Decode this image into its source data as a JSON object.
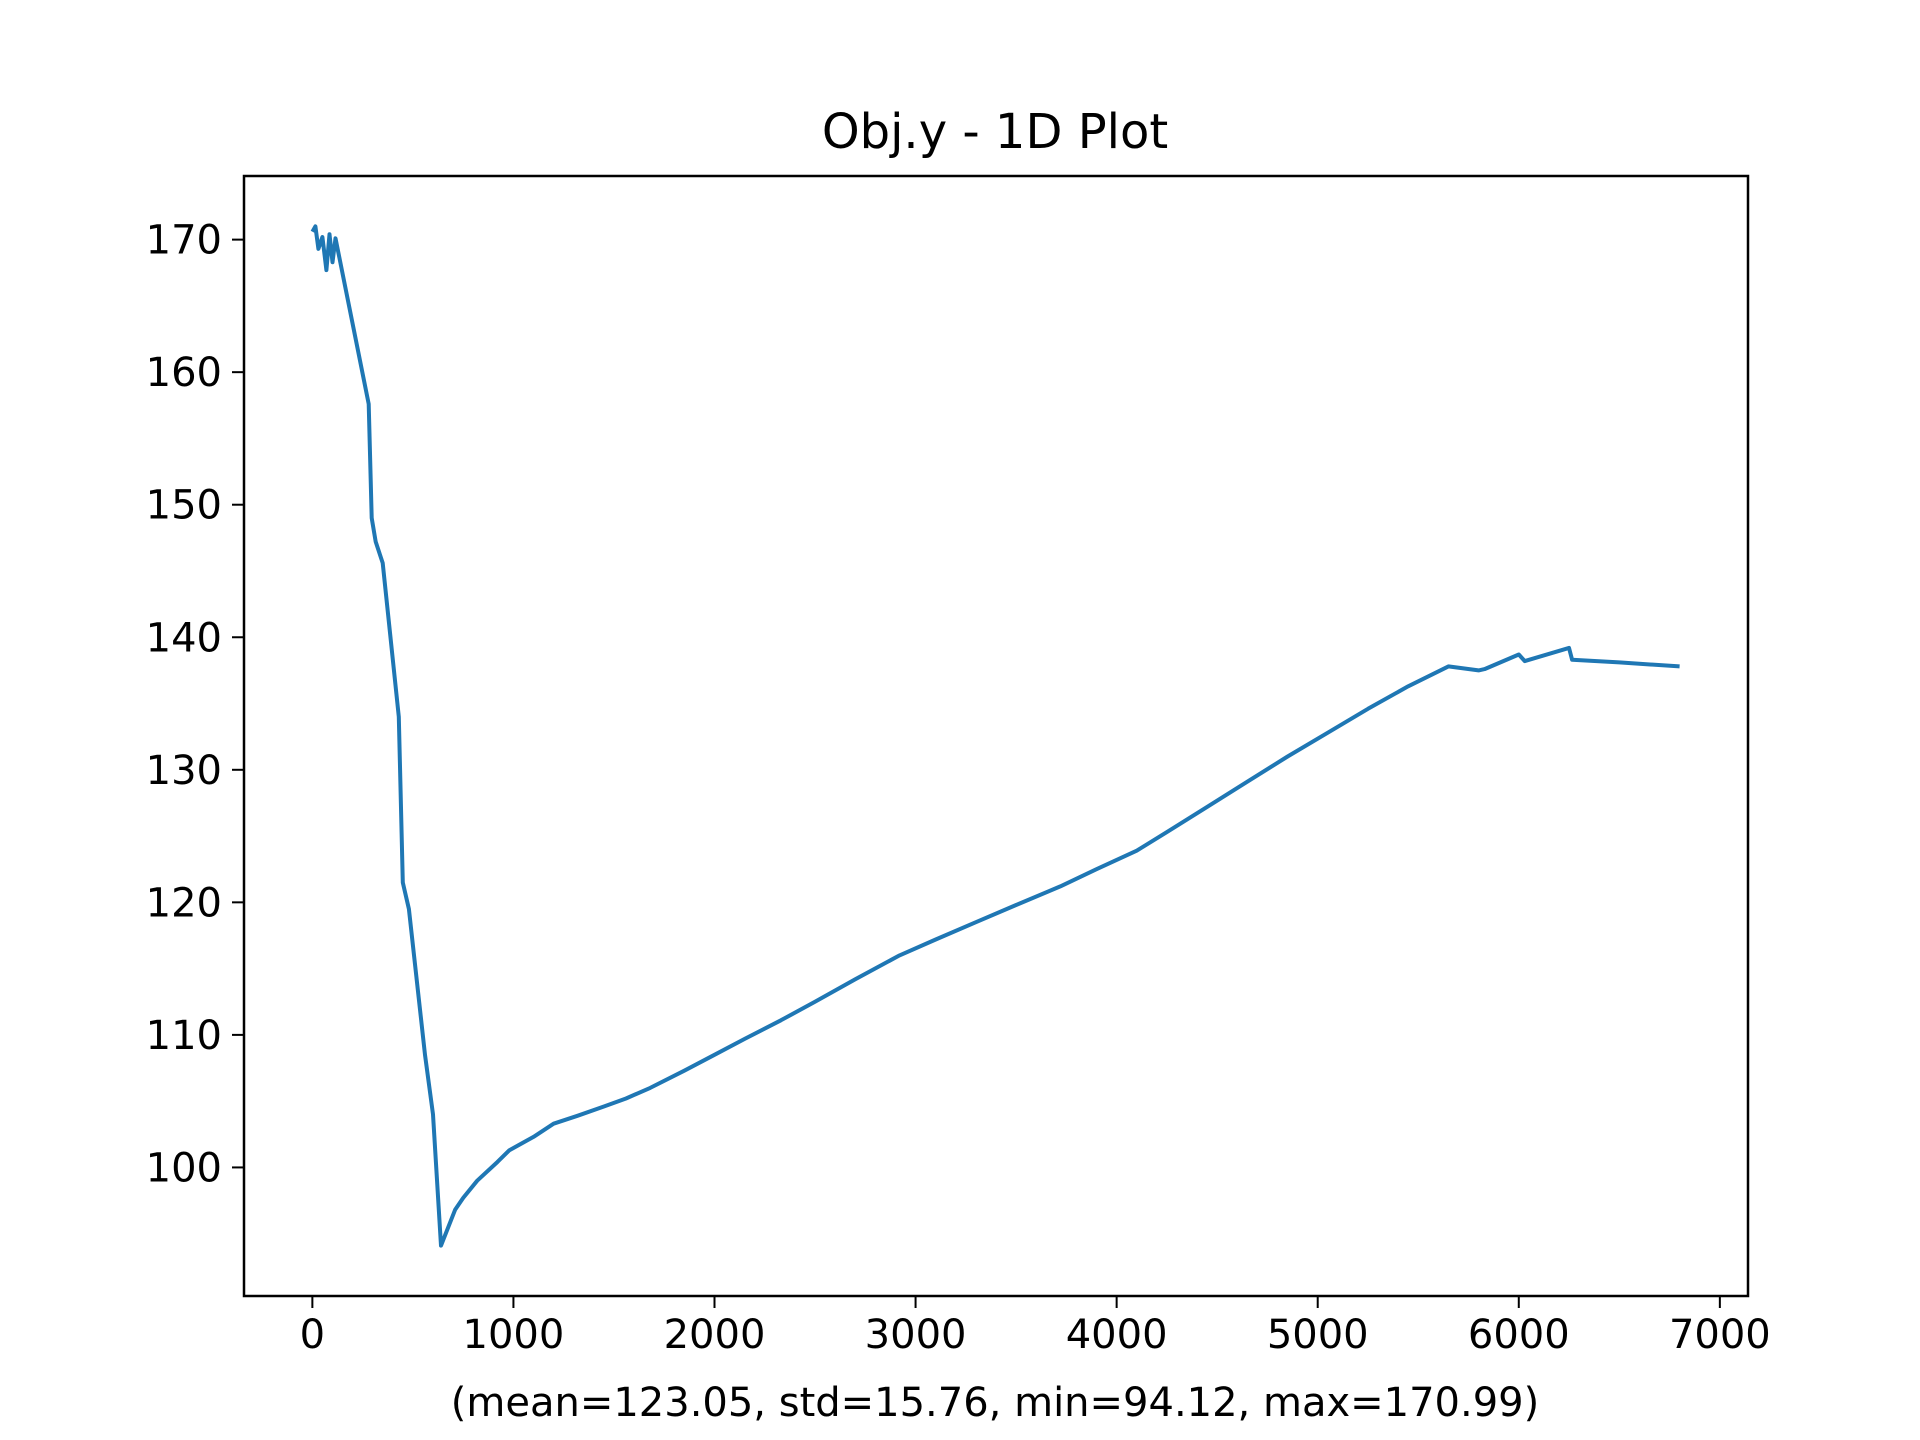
{
  "chart_data": {
    "type": "line",
    "title": "Obj.y - 1D Plot",
    "xlabel": "(mean=123.05, std=15.76, min=94.12, max=170.99)",
    "ylabel": "",
    "xlim": [
      -340,
      7140
    ],
    "ylim": [
      90.3,
      174.8
    ],
    "xticks": [
      0,
      1000,
      2000,
      3000,
      4000,
      5000,
      6000,
      7000
    ],
    "yticks": [
      100,
      110,
      120,
      130,
      140,
      150,
      160,
      170
    ],
    "grid": false,
    "line_color": "#1f77b4",
    "series": [
      {
        "x": [
          0,
          15,
          30,
          50,
          70,
          85,
          100,
          115,
          280,
          295,
          315,
          350,
          430,
          450,
          480,
          560,
          600,
          640,
          710,
          750,
          820,
          920,
          980,
          1100,
          1200,
          1320,
          1450,
          1560,
          1680,
          1850,
          2000,
          2150,
          2330,
          2500,
          2700,
          2920,
          3100,
          3300,
          3500,
          3720,
          3900,
          4100,
          4250,
          4450,
          4650,
          4850,
          5050,
          5250,
          5450,
          5650,
          5800,
          5830,
          6000,
          6030,
          6250,
          6265,
          6500,
          6800
        ],
        "y": [
          170.6,
          171.0,
          169.3,
          170.2,
          167.7,
          170.4,
          168.3,
          170.1,
          157.6,
          149.0,
          147.2,
          145.6,
          134.0,
          121.5,
          119.5,
          108.5,
          104.0,
          94.1,
          96.8,
          97.7,
          99.0,
          100.4,
          101.3,
          102.3,
          103.3,
          103.9,
          104.6,
          105.2,
          106.0,
          107.3,
          108.5,
          109.7,
          111.1,
          112.5,
          114.2,
          116.0,
          117.2,
          118.5,
          119.8,
          121.2,
          122.5,
          123.9,
          125.3,
          127.2,
          129.1,
          131.0,
          132.8,
          134.6,
          136.3,
          137.8,
          137.5,
          137.6,
          138.7,
          138.2,
          139.2,
          138.3,
          138.1,
          137.8
        ]
      }
    ]
  }
}
